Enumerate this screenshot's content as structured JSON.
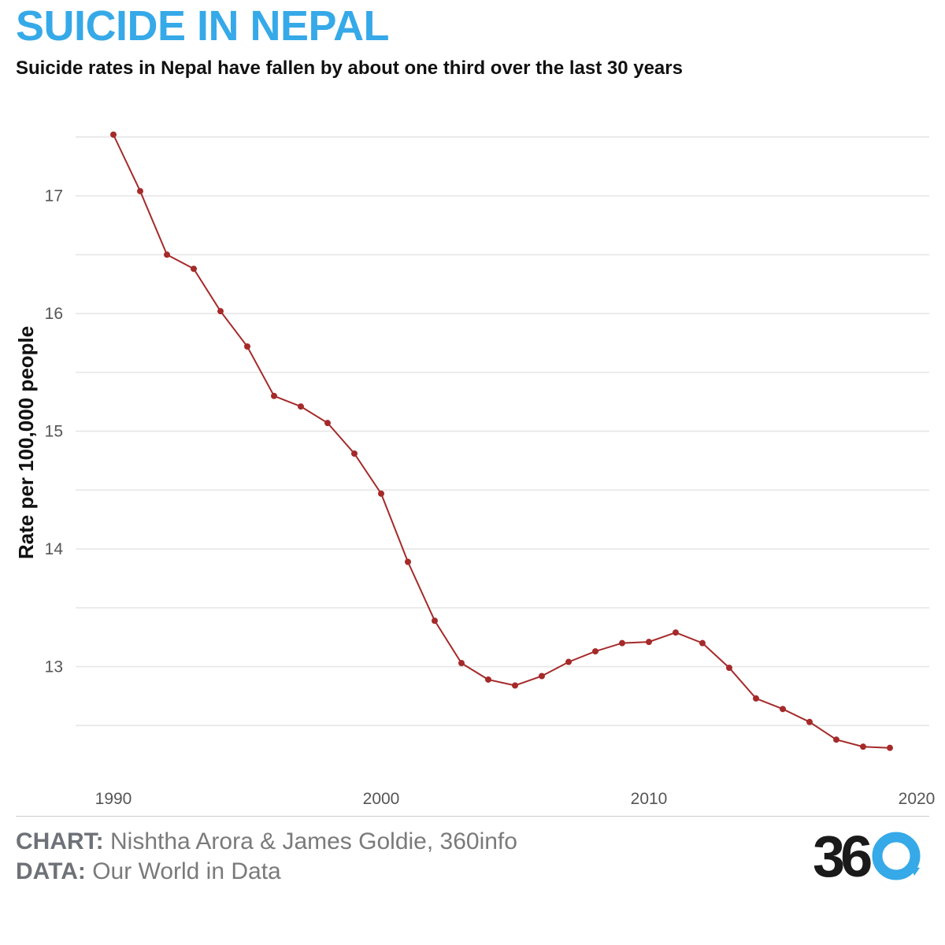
{
  "header": {
    "title": "SUICIDE IN NEPAL",
    "subtitle": "Suicide rates in Nepal have fallen by about one third over the last 30 years"
  },
  "chart_data": {
    "type": "line",
    "title": "SUICIDE IN NEPAL",
    "subtitle": "Suicide rates in Nepal have fallen by about one third over the last 30 years",
    "xlabel": "",
    "ylabel": "Rate per 100,000 people",
    "xlim": [
      1990,
      2020
    ],
    "ylim": [
      12.0,
      17.6
    ],
    "x_ticks": [
      1990,
      2000,
      2010,
      2020
    ],
    "y_ticks": [
      13,
      14,
      15,
      16,
      17
    ],
    "grid": true,
    "legend": "none",
    "color": "#a52a2a",
    "x": [
      1990,
      1991,
      1992,
      1993,
      1994,
      1995,
      1996,
      1997,
      1998,
      1999,
      2000,
      2001,
      2002,
      2003,
      2004,
      2005,
      2006,
      2007,
      2008,
      2009,
      2010,
      2011,
      2012,
      2013,
      2014,
      2015,
      2016,
      2017,
      2018,
      2019
    ],
    "series": [
      {
        "values": [
          17.52,
          17.04,
          16.5,
          16.38,
          16.02,
          15.72,
          15.3,
          15.21,
          15.07,
          14.81,
          14.47,
          13.89,
          13.39,
          13.03,
          12.89,
          12.84,
          12.92,
          13.04,
          13.13,
          13.2,
          13.21,
          13.29,
          13.2,
          12.99,
          12.73,
          12.64,
          12.53,
          12.38,
          12.32,
          12.31
        ]
      }
    ]
  },
  "footer": {
    "chart_label": "CHART:",
    "chart_credit": "Nishtha Arora & James Goldie, 360info",
    "data_label": "DATA:",
    "data_credit": "Our World in Data"
  },
  "logo": {
    "text": "360",
    "ring_color": "#36a9e8"
  }
}
